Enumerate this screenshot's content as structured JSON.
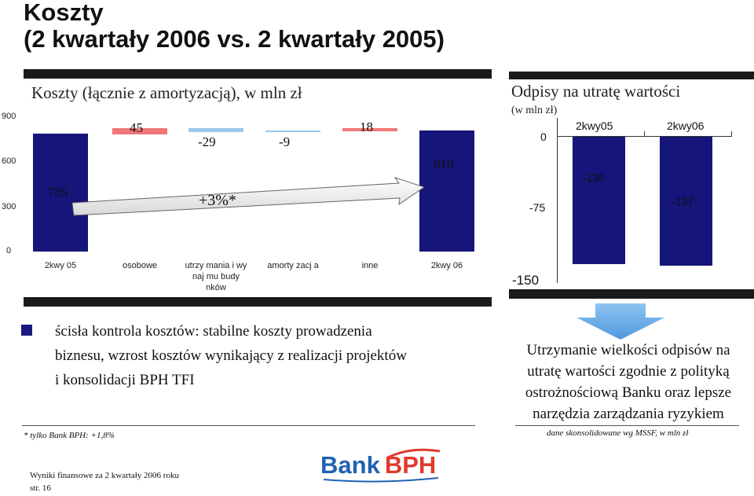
{
  "slide": {
    "title_line1": "Koszty",
    "title_line2": "(2 kwartały 2006 vs. 2 kwartały 2005)"
  },
  "waterfall": {
    "title": "Koszty (łącznie z amortyzacją), w mln zł",
    "y_ticks": [
      "900",
      "600",
      "300",
      "0"
    ],
    "categories": [
      "2kwy 05",
      "osobowe",
      "utrzy mania i wy naj mu budy nków",
      "amorty zacj a",
      "inne",
      "2kwy 06"
    ],
    "value_labels": [
      "785",
      "45",
      "-29",
      "-9",
      "18",
      "810"
    ],
    "growth_label": "+3%*",
    "colors": {
      "total": "#15157a",
      "increase": "#f07878",
      "decrease": "#9cc8f0"
    }
  },
  "chart_data": [
    {
      "type": "bar",
      "title": "Koszty (łącznie z amortyzacją), w mln zł",
      "categories": [
        "2kwy 05",
        "osobowe",
        "utrzy mania i wy naj mu budy nków",
        "amorty zacj a",
        "inne",
        "2kwy 06"
      ],
      "values": [
        785,
        45,
        -29,
        -9,
        18,
        810
      ],
      "ylim": [
        0,
        900
      ],
      "grid": false
    },
    {
      "type": "bar",
      "title": "Odpisy na utratę wartości",
      "subtitle": "(w mln zł)",
      "categories": [
        "2kwy05",
        "2kwy06"
      ],
      "values": [
        -135,
        -137
      ],
      "ylim": [
        -150,
        0
      ],
      "grid": false
    }
  ],
  "impairment": {
    "title": "Odpisy na utratę wartości",
    "subtitle": "(w mln zł)",
    "y_ticks": [
      "0",
      "-75",
      "-150"
    ],
    "categories": [
      "2kwy05",
      "2kwy06"
    ],
    "value_labels": [
      "-135",
      "-137"
    ]
  },
  "left_bullet": {
    "lines": [
      "ścisła kontrola kosztów: stabilne koszty prowadzenia",
      "biznesu, wzrost kosztów wynikający z realizacji projektów",
      "i konsolidacji BPH TFI"
    ]
  },
  "right_box": {
    "lines": [
      "Utrzymanie wielkości odpisów na",
      "utratę wartości zgodnie z polityką",
      "ostrożnościową Banku oraz lepsze",
      "narzędzia zarządzania ryzykiem"
    ]
  },
  "notes": {
    "left": "* tylko Bank BPH: +1,8%",
    "right": "dane skonsolidowane wg MSSF, w mln zł"
  },
  "footer": {
    "line1": "Wyniki finansowe za 2 kwartały 2006 roku",
    "line2": "str. 16"
  },
  "logo": {
    "word1": "Bank",
    "word2": "BPH",
    "colors": {
      "blue": "#1f62b4",
      "red": "#e03a2c"
    }
  }
}
